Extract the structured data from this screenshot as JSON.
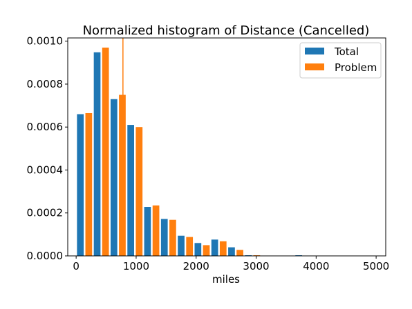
{
  "chart_data": {
    "type": "bar",
    "title": "Normalized histogram of Distance (Cancelled)",
    "xlabel": "miles",
    "ylabel": "",
    "bin_width": 280,
    "bin_starts": [
      0,
      280,
      560,
      840,
      1120,
      1400,
      1680,
      1960,
      2240,
      2520,
      2800,
      3080,
      3360,
      3640,
      3920,
      4200,
      4480,
      4760
    ],
    "series": [
      {
        "name": "Total",
        "color": "#1f77b4",
        "values": [
          0.00066,
          0.000948,
          0.00073,
          0.00061,
          0.000228,
          0.000172,
          9.4e-05,
          6e-05,
          7.6e-05,
          4e-05,
          3e-06,
          0,
          0,
          3e-06,
          0,
          0,
          0,
          0
        ]
      },
      {
        "name": "Problem",
        "color": "#ff7f0e",
        "values": [
          0.000665,
          0.00097,
          0.00075,
          0.0006,
          0.000235,
          0.000168,
          8.8e-05,
          5e-05,
          6.8e-05,
          2.8e-05,
          3e-06,
          0,
          0,
          0,
          0,
          0,
          0,
          0
        ]
      }
    ],
    "vertical_line": {
      "x": 780,
      "color": "#ff7f0e"
    },
    "xlim": [
      -140,
      5160
    ],
    "ylim": [
      0,
      0.001015
    ],
    "xticks": [
      0,
      1000,
      2000,
      3000,
      4000,
      5000
    ],
    "xtick_labels": [
      "0",
      "1000",
      "2000",
      "3000",
      "4000",
      "5000"
    ],
    "yticks": [
      0,
      0.0002,
      0.0004,
      0.0006,
      0.0008,
      0.001
    ],
    "ytick_labels": [
      "0.0000",
      "0.0002",
      "0.0004",
      "0.0006",
      "0.0008",
      "0.0010"
    ],
    "legend": {
      "placement": "top-right"
    },
    "grid": false
  }
}
